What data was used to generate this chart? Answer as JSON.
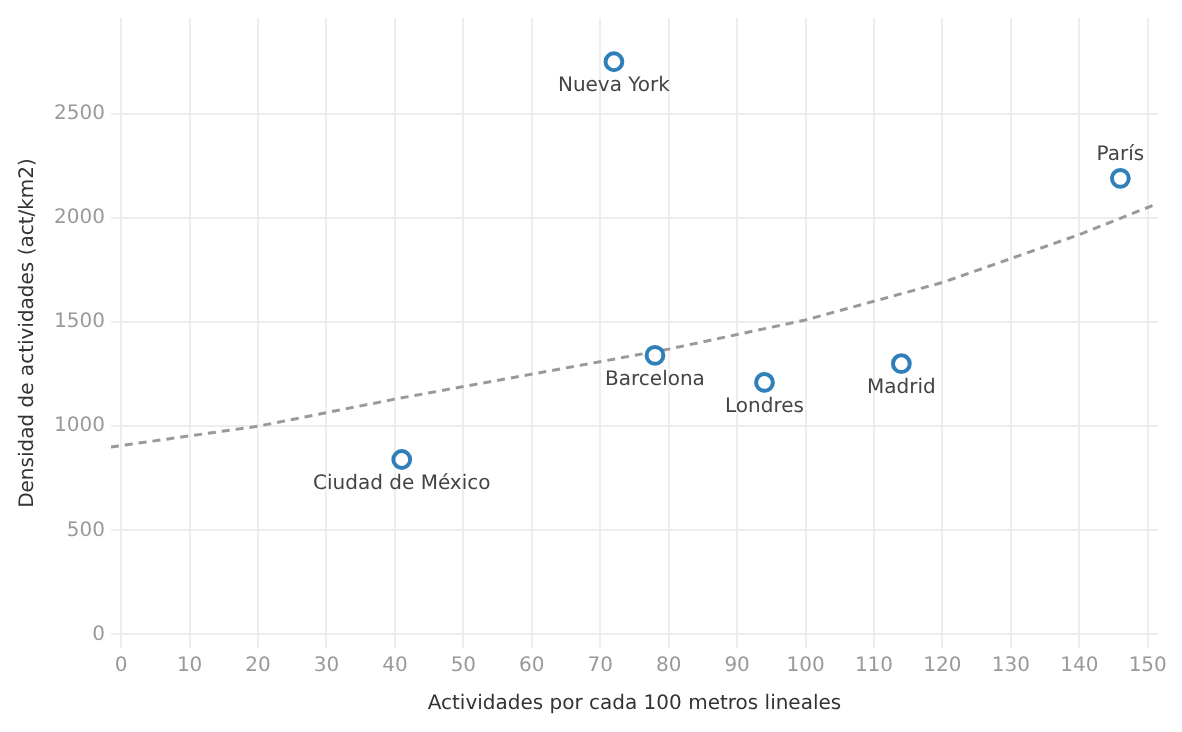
{
  "chart_data": {
    "type": "scatter",
    "xlabel": "Actividades por cada 100 metros lineales",
    "ylabel": "Densidad de actividades (act/km2)",
    "xlim": [
      -1.5,
      151.5
    ],
    "xticks": [
      0,
      10,
      20,
      30,
      40,
      50,
      60,
      70,
      80,
      90,
      100,
      110,
      120,
      130,
      140,
      150
    ],
    "ylim": [
      -65,
      2960
    ],
    "yticks": [
      0,
      500,
      1000,
      1500,
      2000,
      2500
    ],
    "grid": true,
    "legend": false,
    "series": [
      {
        "type": "scatter",
        "color": "#2f7fb8",
        "marker": "circle",
        "x": [
          72,
          146,
          78,
          94,
          114,
          41
        ],
        "values": [
          2750,
          2190,
          1340,
          1210,
          1300,
          840
        ]
      },
      {
        "type": "line",
        "color": "#999999",
        "marker": "none",
        "line_style": "dashed",
        "x": [
          -1.5,
          20,
          40,
          60,
          80,
          100,
          120,
          140,
          151.5
        ],
        "values": [
          900,
          1000,
          1130,
          1250,
          1370,
          1510,
          1690,
          1920,
          2070
        ]
      }
    ],
    "annotations": [
      {
        "text": "Nueva York",
        "x": 72,
        "y": 2750
      },
      {
        "text": "París",
        "x": 146,
        "y": 2190
      },
      {
        "text": "Barcelona",
        "x": 78,
        "y": 1340
      },
      {
        "text": "Londres",
        "x": 94,
        "y": 1210
      },
      {
        "text": "Madrid",
        "x": 114,
        "y": 1300
      },
      {
        "text": "Ciudad de México",
        "x": 41,
        "y": 840
      }
    ]
  }
}
